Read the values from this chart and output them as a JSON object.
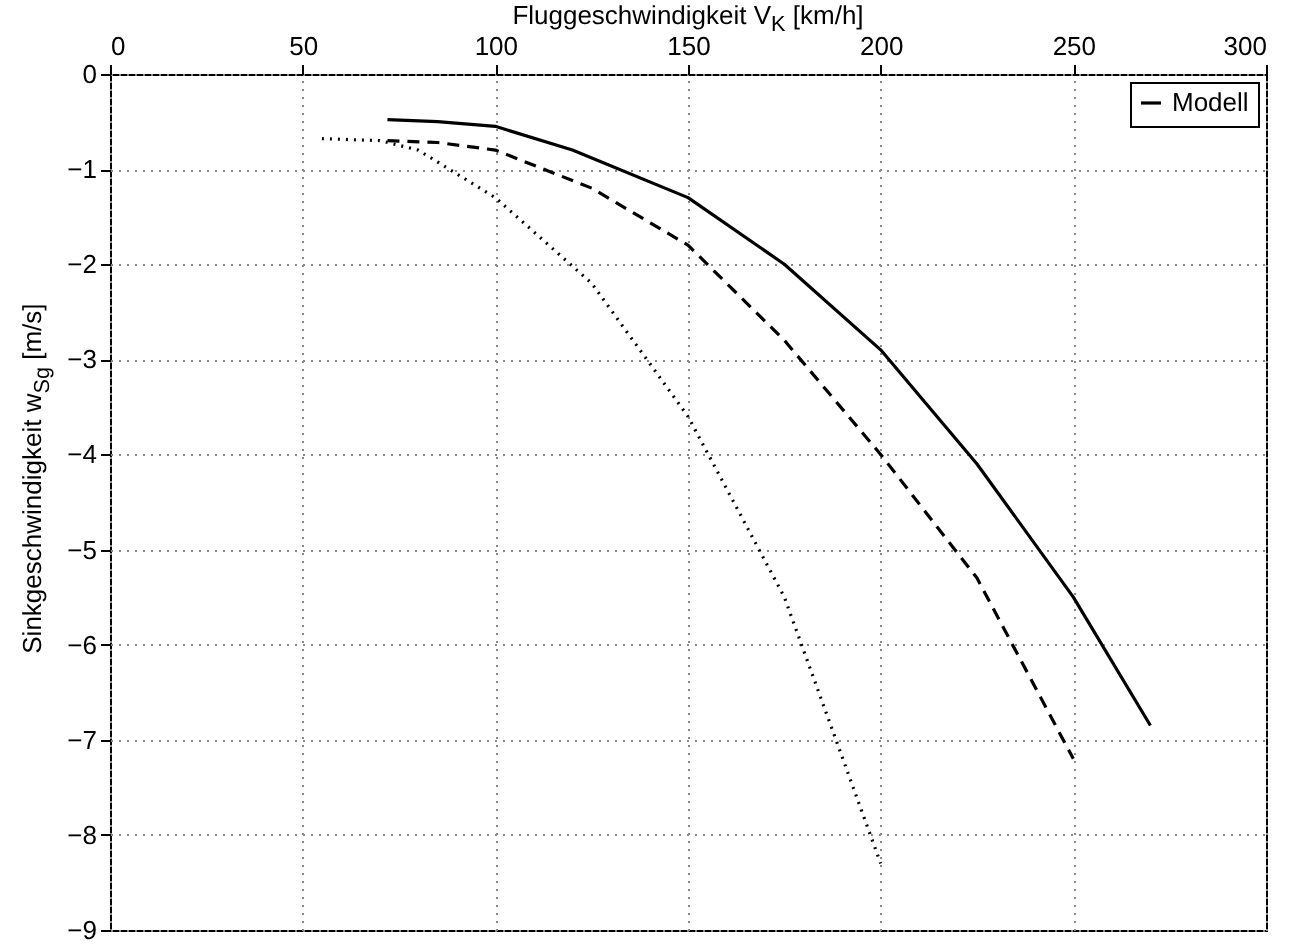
{
  "chart_data": {
    "type": "line",
    "xlabel": "Fluggeschwindigkeit V$_{K}$ [km/h]",
    "ylabel": "Sinkgeschwindigkeit w$_{Sg}$ [m/s]",
    "xlim": [
      0,
      300
    ],
    "xticks": [
      0,
      50,
      100,
      150,
      200,
      250,
      300
    ],
    "ylim": [
      -9,
      0
    ],
    "yticks": [
      -9,
      -8,
      -7,
      -6,
      -5,
      -4,
      -3,
      -2,
      -1,
      0
    ],
    "grid": true,
    "legend": "top right",
    "marker": "none",
    "series": [
      {
        "name": "Modell",
        "color": "#000000",
        "line_style": "solid",
        "x": [
          72,
          85,
          100,
          120,
          150,
          175,
          200,
          225,
          250,
          270
        ],
        "values": [
          -0.48,
          -0.5,
          -0.55,
          -0.8,
          -1.3,
          -2.0,
          -2.9,
          -4.1,
          -5.5,
          -6.85
        ]
      },
      {
        "color": "#000000",
        "line_style": "dashed",
        "x": [
          72,
          85,
          100,
          125,
          150,
          175,
          200,
          225,
          250
        ],
        "values": [
          -0.7,
          -0.72,
          -0.8,
          -1.2,
          -1.8,
          -2.8,
          -4.0,
          -5.3,
          -7.2
        ]
      },
      {
        "color": "#000000",
        "line_style": "dotted",
        "x": [
          55,
          70,
          80,
          100,
          125,
          150,
          175,
          200
        ],
        "values": [
          -0.68,
          -0.7,
          -0.8,
          -1.3,
          -2.2,
          -3.6,
          -5.5,
          -8.3
        ]
      }
    ]
  }
}
